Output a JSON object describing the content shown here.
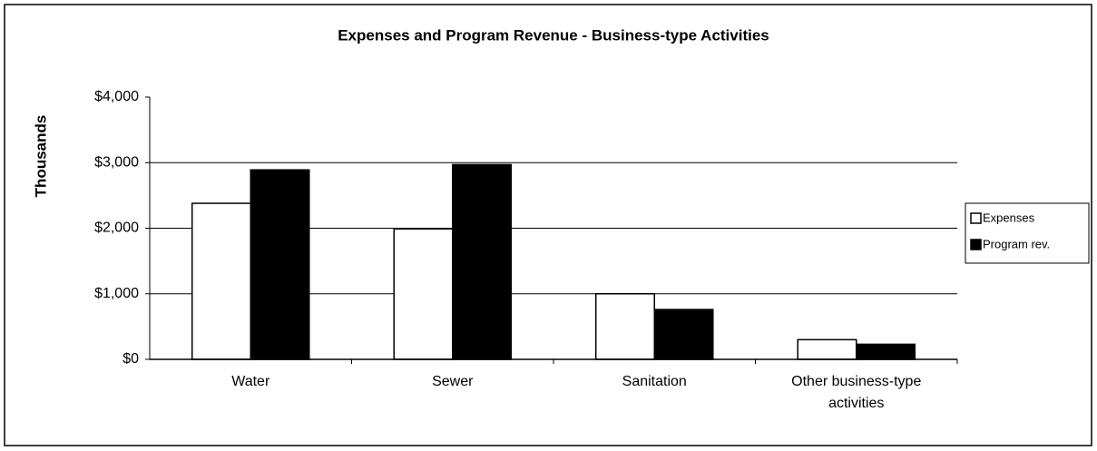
{
  "chart_data": {
    "type": "bar",
    "title": "Expenses and Program Revenue - Business-type Activities",
    "y_label": "Thousands",
    "categories": [
      "Water",
      "Sewer",
      "Sanitation",
      "Other business-type activities"
    ],
    "series": [
      {
        "name": "Expenses",
        "color": "#ffffff",
        "values": [
          2380,
          1990,
          1000,
          300
        ]
      },
      {
        "name": "Program rev.",
        "color": "#000000",
        "values": [
          2890,
          2970,
          760,
          230
        ]
      }
    ],
    "ylim": [
      0,
      4000
    ],
    "yticks": [
      {
        "value": 0,
        "label": "$0"
      },
      {
        "value": 1000,
        "label": "$1,000"
      },
      {
        "value": 2000,
        "label": "$2,000"
      },
      {
        "value": 3000,
        "label": "$3,000"
      },
      {
        "value": 4000,
        "label": "$4,000"
      }
    ],
    "grid": true,
    "legend": "right"
  }
}
